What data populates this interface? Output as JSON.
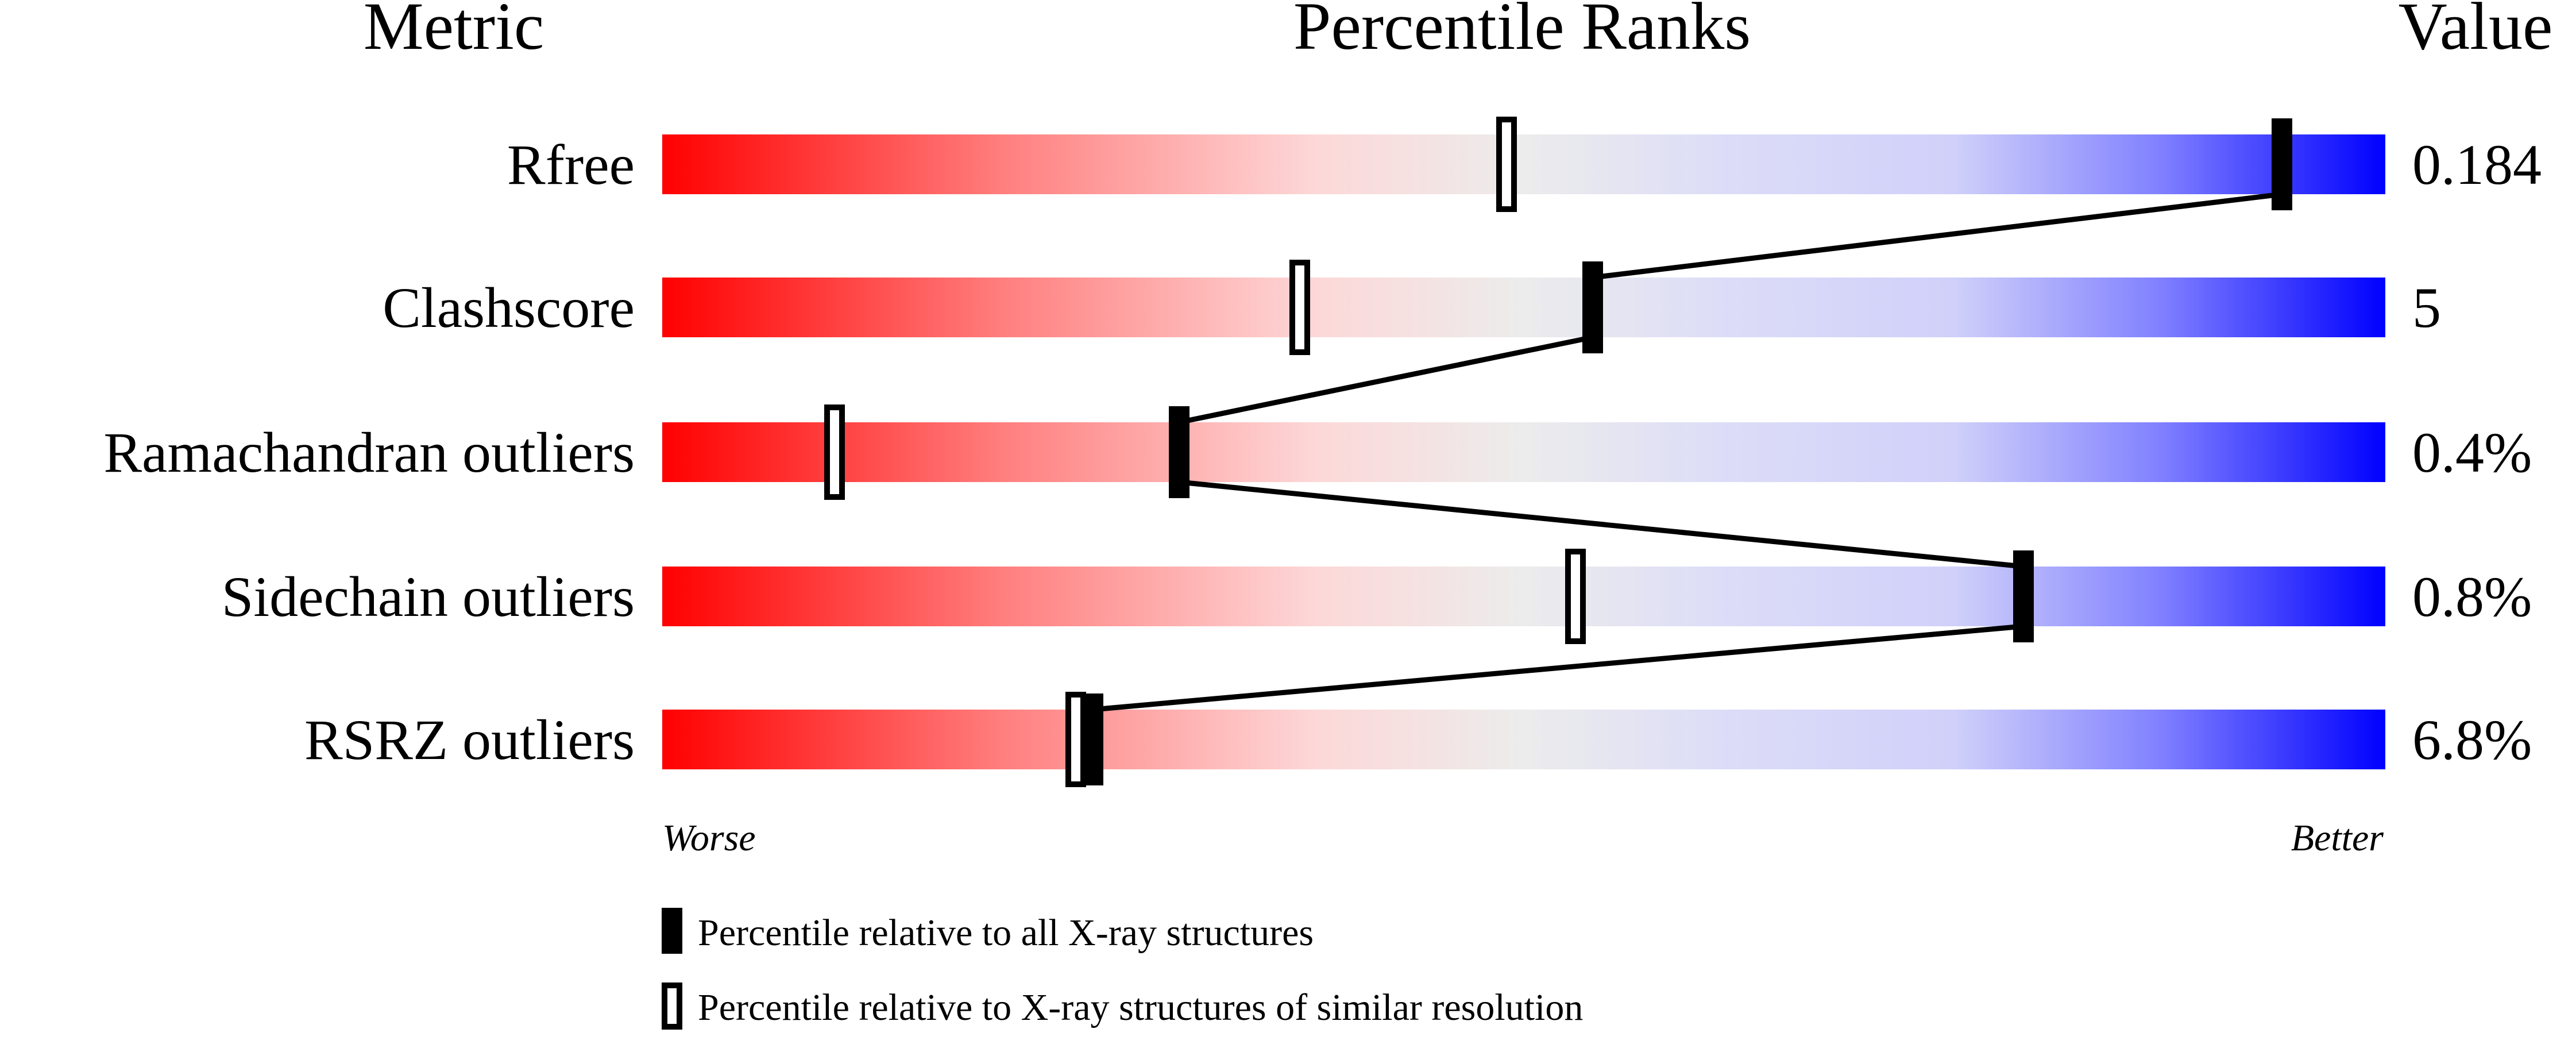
{
  "chart_data": {
    "type": "percentile-slider",
    "headers": {
      "metric": "Metric",
      "ranks": "Percentile Ranks",
      "value": "Value"
    },
    "xlim": [
      0,
      100
    ],
    "axis_left_label": "Worse",
    "axis_right_label": "Better",
    "metrics": [
      {
        "name": "Rfree",
        "value": "0.184",
        "percentile_all": 94,
        "percentile_similar": 49
      },
      {
        "name": "Clashscore",
        "value": "5",
        "percentile_all": 54,
        "percentile_similar": 37
      },
      {
        "name": "Ramachandran outliers",
        "value": "0.4%",
        "percentile_all": 30,
        "percentile_similar": 10
      },
      {
        "name": "Sidechain outliers",
        "value": "0.8%",
        "percentile_all": 79,
        "percentile_similar": 53
      },
      {
        "name": "RSRZ outliers",
        "value": "6.8%",
        "percentile_all": 25,
        "percentile_similar": 24
      }
    ],
    "legend": [
      {
        "marker": "filled",
        "label": "Percentile relative to all X-ray structures"
      },
      {
        "marker": "open",
        "label": "Percentile relative to X-ray structures of similar resolution"
      }
    ],
    "colors": {
      "worse": "#ff0000",
      "middle": "#eeeeee",
      "better": "#0000ff",
      "marker": "#000000"
    }
  }
}
